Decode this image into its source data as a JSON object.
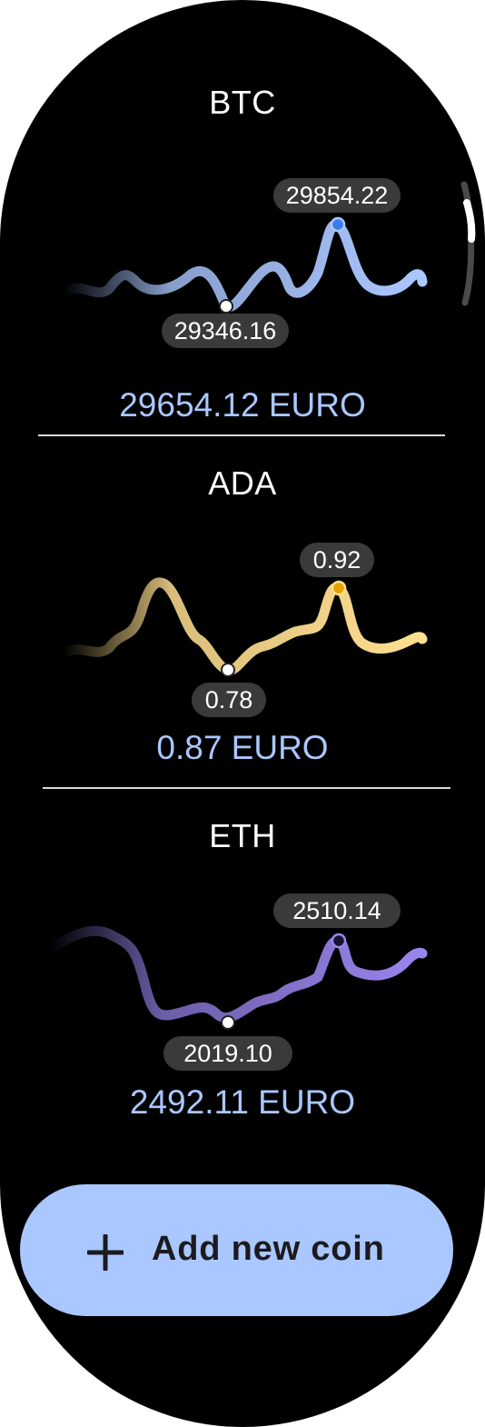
{
  "coins": [
    {
      "symbol": "BTC",
      "price_label": "29654.12 EURO",
      "high_label": "29854.22",
      "low_label": "29346.16",
      "high_value": 29854.22,
      "low_value": 29346.16,
      "current_value": 29654.12,
      "currency": "EURO",
      "color": "#aac7ff"
    },
    {
      "symbol": "ADA",
      "price_label": "0.87 EURO",
      "high_label": "0.92",
      "low_label": "0.78",
      "high_value": 0.92,
      "low_value": 0.78,
      "current_value": 0.87,
      "currency": "EURO",
      "color": "#ffdf90"
    },
    {
      "symbol": "ETH",
      "price_label": "2492.11 EURO",
      "high_label": "2510.14",
      "low_label": "2019.10",
      "high_value": 2510.14,
      "low_value": 2019.1,
      "current_value": 2492.11,
      "currency": "EURO",
      "color": "#9a85ee"
    }
  ],
  "add_button": {
    "label": "Add new coin",
    "icon": "plus-icon"
  },
  "colors": {
    "background": "#000000",
    "accent": "#aac7ff",
    "label_pill": "#3a3a3a",
    "divider": "#d9d9d9"
  }
}
